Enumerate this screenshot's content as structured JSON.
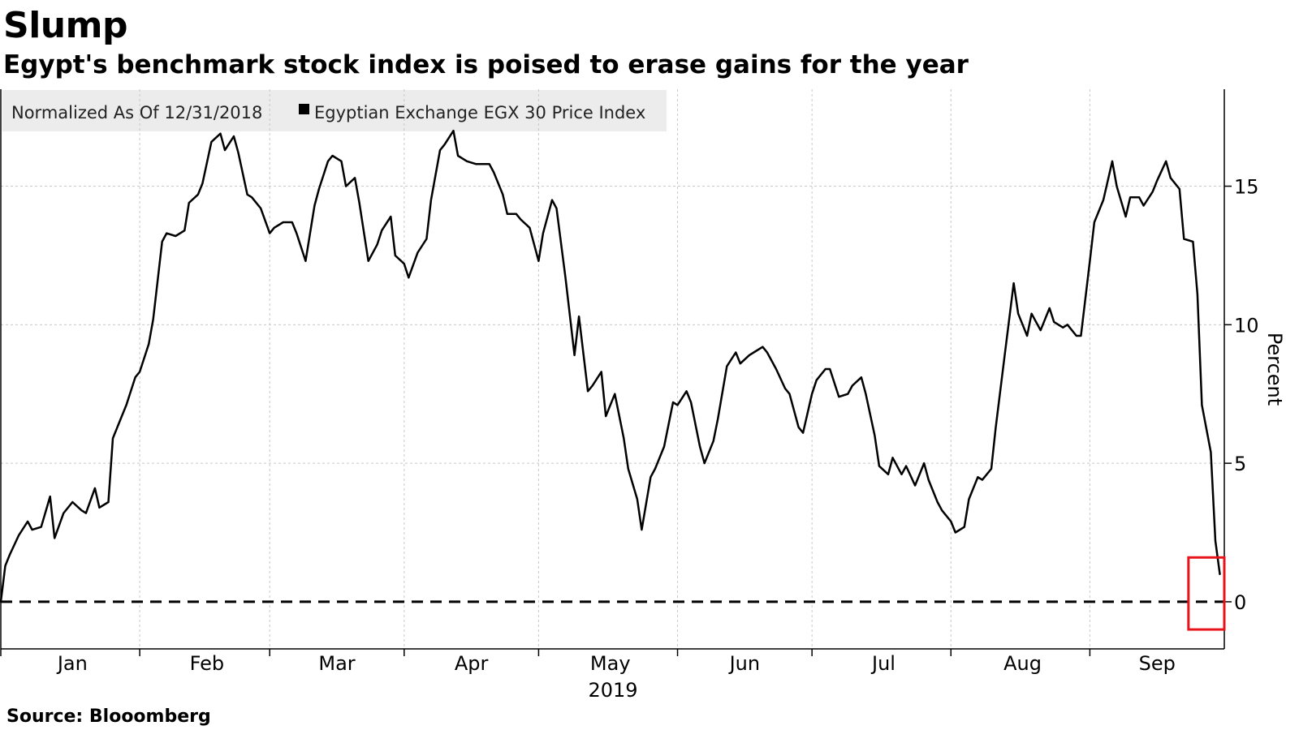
{
  "title": "Slump",
  "subtitle": "Egypt's benchmark stock index is poised to erase gains for the year",
  "source": "Source: Blooomberg",
  "colors": {
    "line": "#000000",
    "highlight": "#e8141b",
    "grid": "#c8c8c8",
    "legend_bg": "#ececec"
  },
  "chart_data": {
    "type": "line",
    "legend": {
      "note": "Normalized As Of 12/31/2018",
      "items": [
        "Egyptian Exchange EGX 30 Price Index"
      ]
    },
    "ylabel": "Percent",
    "xlabel": "2019",
    "xlim": [
      "2018-12-31",
      "2019-09-30"
    ],
    "ylim": [
      -1.7,
      18.5
    ],
    "y_ticks": [
      0,
      5,
      10,
      15
    ],
    "x_ticks": [
      {
        "label": "Jan",
        "date": "2019-01-16"
      },
      {
        "label": "Feb",
        "date": "2019-02-15"
      },
      {
        "label": "Mar",
        "date": "2019-03-16"
      },
      {
        "label": "Apr",
        "date": "2019-04-15"
      },
      {
        "label": "May",
        "date": "2019-05-16"
      },
      {
        "label": "Jun",
        "date": "2019-06-15"
      },
      {
        "label": "Jul",
        "date": "2019-07-16"
      },
      {
        "label": "Aug",
        "date": "2019-08-16"
      },
      {
        "label": "Sep",
        "date": "2019-09-15"
      }
    ],
    "x_gridlines": [
      "2019-01-31",
      "2019-03-01",
      "2019-03-31",
      "2019-04-30",
      "2019-05-31",
      "2019-06-30",
      "2019-07-31",
      "2019-08-31"
    ],
    "grid": true,
    "reference_line": {
      "y": 0,
      "style": "dashed"
    },
    "highlight": {
      "from": "2019-09-22",
      "to": "2019-09-30",
      "y_from": -1.0,
      "y_to": 1.6
    },
    "series": [
      {
        "name": "Egyptian Exchange EGX 30 Price Index",
        "points": [
          [
            "2018-12-31",
            0.0
          ],
          [
            "2019-01-01",
            1.3
          ],
          [
            "2019-01-02",
            1.7
          ],
          [
            "2019-01-04",
            2.4
          ],
          [
            "2019-01-06",
            2.9
          ],
          [
            "2019-01-07",
            2.6
          ],
          [
            "2019-01-09",
            2.7
          ],
          [
            "2019-01-11",
            3.8
          ],
          [
            "2019-01-12",
            2.3
          ],
          [
            "2019-01-14",
            3.2
          ],
          [
            "2019-01-16",
            3.6
          ],
          [
            "2019-01-18",
            3.3
          ],
          [
            "2019-01-19",
            3.2
          ],
          [
            "2019-01-21",
            4.1
          ],
          [
            "2019-01-22",
            3.4
          ],
          [
            "2019-01-24",
            3.6
          ],
          [
            "2019-01-25",
            5.9
          ],
          [
            "2019-01-27",
            6.7
          ],
          [
            "2019-01-28",
            7.1
          ],
          [
            "2019-01-30",
            8.1
          ],
          [
            "2019-01-31",
            8.3
          ],
          [
            "2019-02-02",
            9.3
          ],
          [
            "2019-02-03",
            10.2
          ],
          [
            "2019-02-05",
            13.0
          ],
          [
            "2019-02-06",
            13.3
          ],
          [
            "2019-02-08",
            13.2
          ],
          [
            "2019-02-10",
            13.4
          ],
          [
            "2019-02-11",
            14.4
          ],
          [
            "2019-02-13",
            14.7
          ],
          [
            "2019-02-14",
            15.1
          ],
          [
            "2019-02-16",
            16.6
          ],
          [
            "2019-02-18",
            16.9
          ],
          [
            "2019-02-19",
            16.3
          ],
          [
            "2019-02-21",
            16.8
          ],
          [
            "2019-02-22",
            16.2
          ],
          [
            "2019-02-24",
            14.7
          ],
          [
            "2019-02-25",
            14.6
          ],
          [
            "2019-02-27",
            14.2
          ],
          [
            "2019-03-01",
            13.3
          ],
          [
            "2019-03-02",
            13.5
          ],
          [
            "2019-03-04",
            13.7
          ],
          [
            "2019-03-06",
            13.7
          ],
          [
            "2019-03-07",
            13.3
          ],
          [
            "2019-03-09",
            12.3
          ],
          [
            "2019-03-11",
            14.3
          ],
          [
            "2019-03-12",
            14.9
          ],
          [
            "2019-03-14",
            15.9
          ],
          [
            "2019-03-15",
            16.1
          ],
          [
            "2019-03-17",
            15.9
          ],
          [
            "2019-03-18",
            15.0
          ],
          [
            "2019-03-20",
            15.3
          ],
          [
            "2019-03-21",
            14.4
          ],
          [
            "2019-03-23",
            12.3
          ],
          [
            "2019-03-25",
            12.9
          ],
          [
            "2019-03-26",
            13.4
          ],
          [
            "2019-03-28",
            13.9
          ],
          [
            "2019-03-29",
            12.5
          ],
          [
            "2019-03-31",
            12.2
          ],
          [
            "2019-04-01",
            11.7
          ],
          [
            "2019-04-03",
            12.6
          ],
          [
            "2019-04-05",
            13.1
          ],
          [
            "2019-04-06",
            14.5
          ],
          [
            "2019-04-08",
            16.3
          ],
          [
            "2019-04-09",
            16.5
          ],
          [
            "2019-04-11",
            17.0
          ],
          [
            "2019-04-12",
            16.1
          ],
          [
            "2019-04-14",
            15.9
          ],
          [
            "2019-04-16",
            15.8
          ],
          [
            "2019-04-17",
            15.8
          ],
          [
            "2019-04-19",
            15.8
          ],
          [
            "2019-04-20",
            15.5
          ],
          [
            "2019-04-22",
            14.7
          ],
          [
            "2019-04-23",
            14.0
          ],
          [
            "2019-04-25",
            14.0
          ],
          [
            "2019-04-26",
            13.8
          ],
          [
            "2019-04-28",
            13.5
          ],
          [
            "2019-04-30",
            12.3
          ],
          [
            "2019-05-01",
            13.3
          ],
          [
            "2019-05-03",
            14.5
          ],
          [
            "2019-05-04",
            14.2
          ],
          [
            "2019-05-06",
            11.7
          ],
          [
            "2019-05-08",
            8.9
          ],
          [
            "2019-05-09",
            10.3
          ],
          [
            "2019-05-11",
            7.6
          ],
          [
            "2019-05-12",
            7.8
          ],
          [
            "2019-05-14",
            8.3
          ],
          [
            "2019-05-15",
            6.7
          ],
          [
            "2019-05-17",
            7.5
          ],
          [
            "2019-05-19",
            5.9
          ],
          [
            "2019-05-20",
            4.8
          ],
          [
            "2019-05-22",
            3.7
          ],
          [
            "2019-05-23",
            2.6
          ],
          [
            "2019-05-25",
            4.5
          ],
          [
            "2019-05-26",
            4.8
          ],
          [
            "2019-05-28",
            5.6
          ],
          [
            "2019-05-30",
            7.2
          ],
          [
            "2019-05-31",
            7.1
          ],
          [
            "2019-06-02",
            7.6
          ],
          [
            "2019-06-03",
            7.2
          ],
          [
            "2019-06-05",
            5.6
          ],
          [
            "2019-06-06",
            5.0
          ],
          [
            "2019-06-08",
            5.8
          ],
          [
            "2019-06-09",
            6.6
          ],
          [
            "2019-06-11",
            8.5
          ],
          [
            "2019-06-13",
            9.0
          ],
          [
            "2019-06-14",
            8.6
          ],
          [
            "2019-06-16",
            8.9
          ],
          [
            "2019-06-17",
            9.0
          ],
          [
            "2019-06-19",
            9.2
          ],
          [
            "2019-06-20",
            9.0
          ],
          [
            "2019-06-22",
            8.4
          ],
          [
            "2019-06-24",
            7.7
          ],
          [
            "2019-06-25",
            7.5
          ],
          [
            "2019-06-27",
            6.3
          ],
          [
            "2019-06-28",
            6.1
          ],
          [
            "2019-06-30",
            7.5
          ],
          [
            "2019-07-01",
            8.0
          ],
          [
            "2019-07-03",
            8.4
          ],
          [
            "2019-07-04",
            8.4
          ],
          [
            "2019-07-06",
            7.4
          ],
          [
            "2019-07-08",
            7.5
          ],
          [
            "2019-07-09",
            7.8
          ],
          [
            "2019-07-11",
            8.1
          ],
          [
            "2019-07-12",
            7.5
          ],
          [
            "2019-07-14",
            6.0
          ],
          [
            "2019-07-15",
            4.9
          ],
          [
            "2019-07-17",
            4.6
          ],
          [
            "2019-07-18",
            5.2
          ],
          [
            "2019-07-20",
            4.6
          ],
          [
            "2019-07-21",
            4.9
          ],
          [
            "2019-07-23",
            4.2
          ],
          [
            "2019-07-25",
            5.0
          ],
          [
            "2019-07-26",
            4.4
          ],
          [
            "2019-07-28",
            3.6
          ],
          [
            "2019-07-29",
            3.3
          ],
          [
            "2019-07-31",
            2.9
          ],
          [
            "2019-08-01",
            2.5
          ],
          [
            "2019-08-03",
            2.7
          ],
          [
            "2019-08-04",
            3.7
          ],
          [
            "2019-08-06",
            4.5
          ],
          [
            "2019-08-07",
            4.4
          ],
          [
            "2019-08-09",
            4.8
          ],
          [
            "2019-08-10",
            6.3
          ],
          [
            "2019-08-12",
            8.9
          ],
          [
            "2019-08-14",
            11.5
          ],
          [
            "2019-08-15",
            10.4
          ],
          [
            "2019-08-17",
            9.6
          ],
          [
            "2019-08-18",
            10.4
          ],
          [
            "2019-08-20",
            9.8
          ],
          [
            "2019-08-22",
            10.6
          ],
          [
            "2019-08-23",
            10.1
          ],
          [
            "2019-08-25",
            9.9
          ],
          [
            "2019-08-26",
            10.0
          ],
          [
            "2019-08-28",
            9.6
          ],
          [
            "2019-08-29",
            9.6
          ],
          [
            "2019-08-31",
            12.3
          ],
          [
            "2019-09-01",
            13.7
          ],
          [
            "2019-09-03",
            14.5
          ],
          [
            "2019-09-05",
            15.9
          ],
          [
            "2019-09-06",
            15.0
          ],
          [
            "2019-09-08",
            13.9
          ],
          [
            "2019-09-09",
            14.6
          ],
          [
            "2019-09-11",
            14.6
          ],
          [
            "2019-09-12",
            14.3
          ],
          [
            "2019-09-14",
            14.8
          ],
          [
            "2019-09-15",
            15.2
          ],
          [
            "2019-09-17",
            15.9
          ],
          [
            "2019-09-18",
            15.3
          ],
          [
            "2019-09-20",
            14.9
          ],
          [
            "2019-09-21",
            13.1
          ],
          [
            "2019-09-23",
            13.0
          ],
          [
            "2019-09-24",
            11.1
          ],
          [
            "2019-09-25",
            7.1
          ],
          [
            "2019-09-27",
            5.4
          ],
          [
            "2019-09-28",
            2.2
          ],
          [
            "2019-09-29",
            1.0
          ]
        ]
      }
    ]
  }
}
